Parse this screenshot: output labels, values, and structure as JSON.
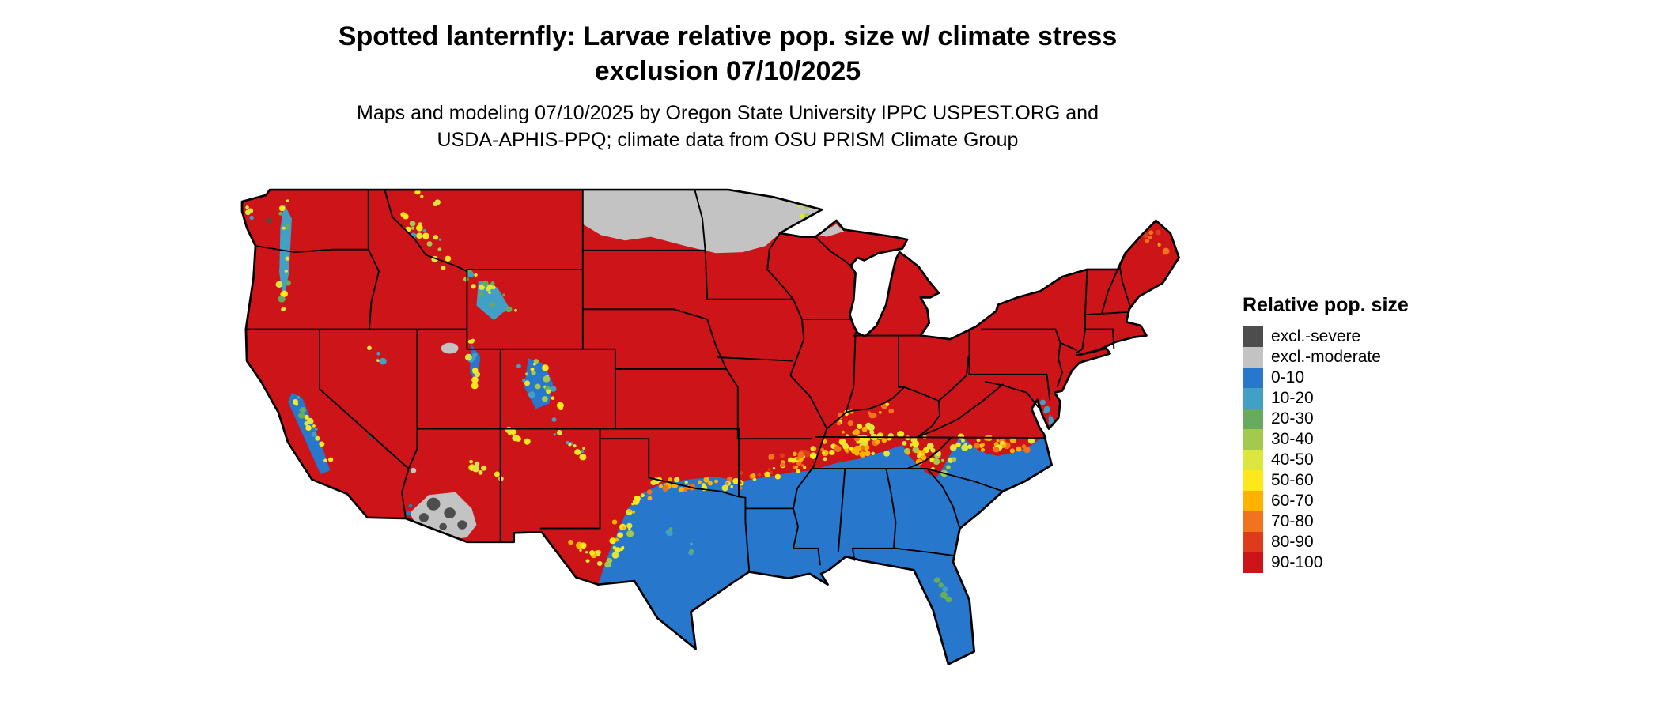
{
  "header": {
    "title_line1": "Spotted lanternfly: Larvae relative pop. size w/ climate stress",
    "title_line2": "exclusion 07/10/2025",
    "subtitle_line1": "Maps and modeling 07/10/2025 by Oregon State University IPPC USPEST.ORG and",
    "subtitle_line2": "USDA-APHIS-PPQ; climate data from OSU PRISM Climate Group"
  },
  "legend": {
    "title": "Relative pop. size",
    "items": [
      {
        "key": "severe",
        "label": "excl.-severe",
        "color": "#4d4d4d"
      },
      {
        "key": "moderate",
        "label": "excl.-moderate",
        "color": "#c3c3c3"
      },
      {
        "key": "b0",
        "label": "0-10",
        "color": "#2777cd"
      },
      {
        "key": "b10",
        "label": "10-20",
        "color": "#41a0c4"
      },
      {
        "key": "b20",
        "label": "20-30",
        "color": "#67ab5e"
      },
      {
        "key": "b30",
        "label": "30-40",
        "color": "#a5c84e"
      },
      {
        "key": "b40",
        "label": "40-50",
        "color": "#dce63f"
      },
      {
        "key": "b50",
        "label": "50-60",
        "color": "#ffe81a"
      },
      {
        "key": "b60",
        "label": "60-70",
        "color": "#ffb300"
      },
      {
        "key": "b70",
        "label": "70-80",
        "color": "#f1731d"
      },
      {
        "key": "b80",
        "label": "80-90",
        "color": "#de3b1b"
      },
      {
        "key": "b90",
        "label": "90-100",
        "color": "#cd1418"
      }
    ]
  }
}
